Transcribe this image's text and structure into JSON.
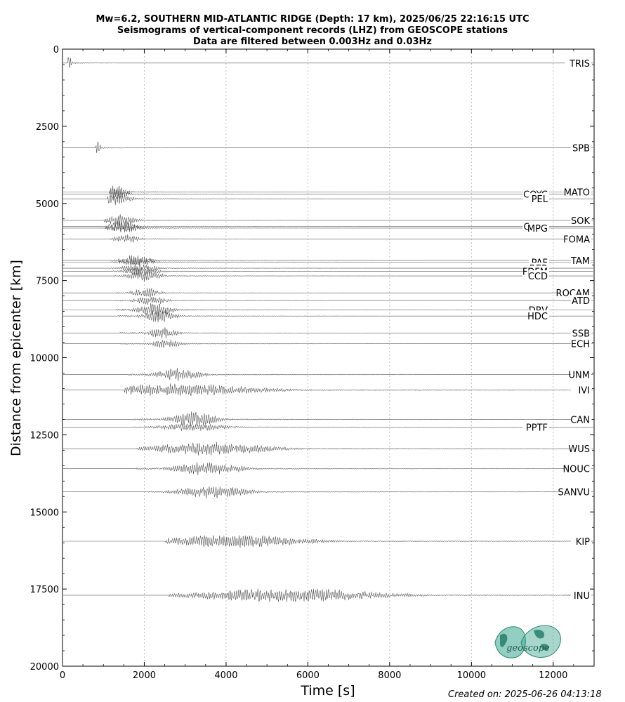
{
  "chart_data": {
    "type": "line",
    "title": [
      "Mw=6.2, SOUTHERN MID-ATLANTIC RIDGE (Depth: 17 km), 2025/06/25 22:16:15 UTC",
      "Seismograms of vertical-component records (LHZ) from GEOSCOPE stations",
      "Data are filtered between 0.003Hz and 0.03Hz"
    ],
    "xlabel": "Time [s]",
    "ylabel": "Distance from epicenter [km]",
    "xlim": [
      0,
      13000
    ],
    "ylim": [
      20000,
      0
    ],
    "y_inverted": true,
    "xticks": [
      0,
      2000,
      4000,
      6000,
      8000,
      10000,
      12000
    ],
    "yticks": [
      0,
      2500,
      5000,
      7500,
      10000,
      12500,
      15000,
      17500,
      20000
    ],
    "x_grid": "dotted",
    "stations": [
      {
        "name": "TRIS",
        "distance": 450,
        "onset": 130,
        "peak": 150,
        "duration": 200,
        "amp": 1.2
      },
      {
        "name": "SPB",
        "distance": 3200,
        "onset": 800,
        "peak": 840,
        "duration": 250,
        "amp": 1.0
      },
      {
        "name": "MATO",
        "distance": 4630,
        "onset": 1150,
        "peak": 1280,
        "duration": 800,
        "amp": 0.9
      },
      {
        "name": "COYC",
        "distance": 4700,
        "onset": 1150,
        "peak": 1280,
        "duration": 800,
        "amp": 0.8
      },
      {
        "name": "PEL",
        "distance": 4850,
        "onset": 1100,
        "peak": 1300,
        "duration": 1100,
        "amp": 0.8
      },
      {
        "name": "SOK",
        "distance": 5550,
        "onset": 1000,
        "peak": 1400,
        "duration": 1100,
        "amp": 0.7
      },
      {
        "name": "CRZF",
        "distance": 5750,
        "onset": 1000,
        "peak": 1450,
        "duration": 1100,
        "amp": 0.8
      },
      {
        "name": "MPG",
        "distance": 5800,
        "onset": 1050,
        "peak": 1500,
        "duration": 1100,
        "amp": 0.7
      },
      {
        "name": "FOMA",
        "distance": 6150,
        "onset": 1100,
        "peak": 1550,
        "duration": 900,
        "amp": 0.6
      },
      {
        "name": "TAM",
        "distance": 6850,
        "onset": 1150,
        "peak": 1800,
        "duration": 1100,
        "amp": 0.7
      },
      {
        "name": "PAF",
        "distance": 6900,
        "onset": 1150,
        "peak": 1850,
        "duration": 1100,
        "amp": 0.6
      },
      {
        "name": "RER",
        "distance": 7100,
        "onset": 1150,
        "peak": 1900,
        "duration": 1200,
        "amp": 0.6
      },
      {
        "name": "FDFM",
        "distance": 7200,
        "onset": 1200,
        "peak": 1950,
        "duration": 1200,
        "amp": 0.6
      },
      {
        "name": "CCD",
        "distance": 7350,
        "onset": 1250,
        "peak": 2000,
        "duration": 1200,
        "amp": 0.7
      },
      {
        "name": "ROCAM",
        "distance": 7900,
        "onset": 1300,
        "peak": 2050,
        "duration": 1000,
        "amp": 0.6
      },
      {
        "name": "ATD",
        "distance": 8150,
        "onset": 1300,
        "peak": 2150,
        "duration": 1100,
        "amp": 0.6
      },
      {
        "name": "DRV",
        "distance": 8450,
        "onset": 1300,
        "peak": 2250,
        "duration": 1200,
        "amp": 0.9
      },
      {
        "name": "HDC",
        "distance": 8650,
        "onset": 1350,
        "peak": 2350,
        "duration": 1200,
        "amp": 0.8
      },
      {
        "name": "SSB",
        "distance": 9200,
        "onset": 1400,
        "peak": 2450,
        "duration": 1000,
        "amp": 0.7
      },
      {
        "name": "ECH",
        "distance": 9550,
        "onset": 1400,
        "peak": 2550,
        "duration": 1000,
        "amp": 0.6
      },
      {
        "name": "UNM",
        "distance": 10550,
        "onset": 1600,
        "peak": 2850,
        "duration": 1600,
        "amp": 0.8
      },
      {
        "name": "IVI",
        "distance": 11050,
        "onset": 1500,
        "peak": 2700,
        "duration": 6300,
        "amp": 0.8
      },
      {
        "name": "CAN",
        "distance": 12000,
        "onset": 1700,
        "peak": 3200,
        "duration": 1800,
        "amp": 0.9
      },
      {
        "name": "PPTF",
        "distance": 12250,
        "onset": 1700,
        "peak": 3200,
        "duration": 2400,
        "amp": 0.5
      },
      {
        "name": "WUS",
        "distance": 12950,
        "onset": 1800,
        "peak": 3600,
        "duration": 4500,
        "amp": 0.8
      },
      {
        "name": "NOUC",
        "distance": 13600,
        "onset": 1800,
        "peak": 3550,
        "duration": 2500,
        "amp": 0.8
      },
      {
        "name": "SANVU",
        "distance": 14350,
        "onset": 2100,
        "peak": 3700,
        "duration": 2500,
        "amp": 0.8
      },
      {
        "name": "KIP",
        "distance": 15950,
        "onset": 2500,
        "peak": 4200,
        "duration": 5400,
        "amp": 0.8
      },
      {
        "name": "INU",
        "distance": 17700,
        "onset": 2600,
        "peak": 5500,
        "duration": 6700,
        "amp": 0.9
      }
    ]
  },
  "footer": {
    "created": "Created on: 2025-06-26 04:13:18",
    "logo_text": "geoscope"
  },
  "colors": {
    "trace": "#555555",
    "axis": "#000000",
    "grid": "#b0b0b0",
    "logo": "#3aa58f"
  }
}
